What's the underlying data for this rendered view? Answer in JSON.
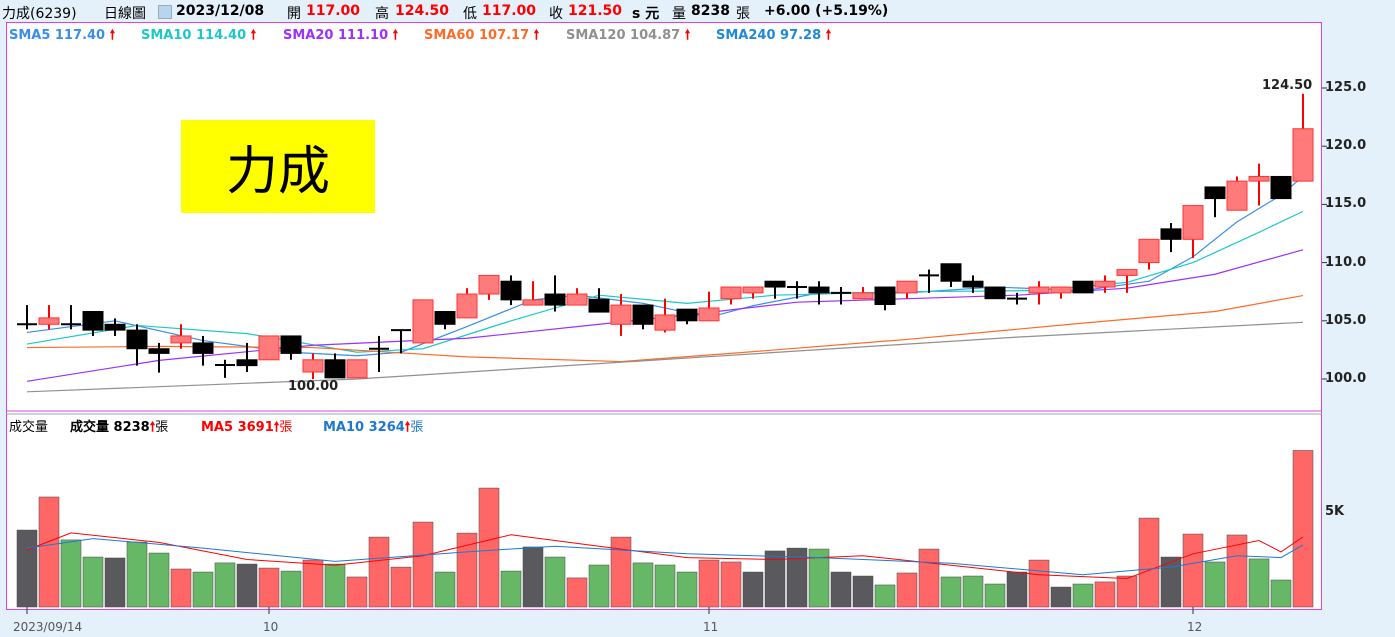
{
  "header": {
    "stock": "力成(6239)",
    "period": "日線圖",
    "date": "2023/12/08",
    "open_label": "開",
    "open": "117.00",
    "high_label": "高",
    "high": "124.50",
    "low_label": "低",
    "low": "117.00",
    "close_label": "收",
    "close": "121.50",
    "unit": "s 元",
    "vol_label": "量",
    "vol": "8238",
    "vol_unit": "張",
    "change": "+6.00 (+5.19%)"
  },
  "sma_legend": [
    {
      "label": "SMA5 117.40",
      "color": "#3a8ee6"
    },
    {
      "label": "SMA10 114.40",
      "color": "#1ec8c8"
    },
    {
      "label": "SMA20 111.10",
      "color": "#9b30ff"
    },
    {
      "label": "SMA60 107.17",
      "color": "#ff6a28"
    },
    {
      "label": "SMA120 104.87",
      "color": "#909090"
    },
    {
      "label": "SMA240 97.28",
      "color": "#1e8ad6"
    }
  ],
  "arrow": "🠕",
  "vol_legend": {
    "title": "成交量",
    "vol": "成交量 8238",
    "ma5": "MA5 3691",
    "ma10": "MA10 3264",
    "unit": "張"
  },
  "logo_text": "力成",
  "annotations": {
    "high": "124.50",
    "low": "100.00"
  },
  "chart_data": {
    "type": "candlestick",
    "price_axis": {
      "ticks": [
        "125.0",
        "120.0",
        "115.0",
        "110.0",
        "105.0",
        "100.0"
      ],
      "values": [
        125,
        120,
        115,
        110,
        105,
        100
      ]
    },
    "volume_axis": {
      "ticks": [
        "5K"
      ],
      "values": [
        5000
      ]
    },
    "x_labels": [
      {
        "idx": 0,
        "label": "2023/09/14"
      },
      {
        "idx": 11,
        "label": "10"
      },
      {
        "idx": 31,
        "label": "11"
      },
      {
        "idx": 53,
        "label": "12"
      }
    ],
    "ohlc": [
      [
        104.7,
        106.35,
        104.27,
        104.7
      ],
      [
        104.7,
        106.35,
        104.27,
        105.25
      ],
      [
        104.7,
        106.35,
        104.27,
        104.7
      ],
      [
        105.8,
        105.8,
        103.7,
        104.2
      ],
      [
        104.7,
        105.2,
        103.7,
        104.2
      ],
      [
        104.2,
        104.7,
        101.15,
        102.6
      ],
      [
        102.6,
        103.1,
        100.55,
        102.2
      ],
      [
        103.1,
        104.7,
        102.6,
        103.7
      ],
      [
        103.1,
        103.7,
        101.15,
        102.2
      ],
      [
        101.2,
        101.65,
        100.1,
        101.2
      ],
      [
        101.65,
        103.1,
        100.6,
        101.15
      ],
      [
        101.65,
        103.7,
        101.65,
        103.7
      ],
      [
        103.7,
        103.7,
        101.65,
        102.2
      ],
      [
        100.6,
        102.2,
        100.0,
        101.65
      ],
      [
        101.65,
        102.2,
        100.1,
        100.1
      ],
      [
        100.1,
        101.65,
        100.1,
        101.65
      ],
      [
        102.6,
        103.7,
        100.6,
        102.6
      ],
      [
        104.2,
        104.2,
        102.2,
        104.2
      ],
      [
        103.1,
        106.8,
        103.1,
        106.8
      ],
      [
        105.8,
        105.8,
        104.27,
        104.7
      ],
      [
        105.25,
        107.8,
        105.25,
        107.3
      ],
      [
        107.3,
        108.9,
        106.8,
        108.9
      ],
      [
        108.4,
        108.9,
        106.35,
        106.8
      ],
      [
        106.35,
        108.4,
        106.35,
        106.8
      ],
      [
        107.3,
        108.9,
        105.8,
        106.35
      ],
      [
        106.35,
        107.8,
        106.35,
        107.3
      ],
      [
        106.85,
        107.8,
        105.75,
        105.75
      ],
      [
        104.7,
        107.3,
        103.7,
        106.35
      ],
      [
        106.35,
        106.35,
        104.27,
        104.7
      ],
      [
        104.2,
        106.9,
        104.0,
        105.5
      ],
      [
        106.0,
        106.0,
        104.7,
        105.0
      ],
      [
        105.0,
        107.5,
        105.0,
        106.1
      ],
      [
        106.9,
        107.9,
        106.4,
        107.9
      ],
      [
        107.4,
        107.9,
        106.9,
        107.9
      ],
      [
        108.4,
        108.4,
        106.9,
        107.9
      ],
      [
        107.9,
        108.4,
        106.9,
        107.9
      ],
      [
        107.9,
        108.4,
        106.4,
        107.4
      ],
      [
        107.4,
        107.9,
        106.4,
        107.4
      ],
      [
        106.9,
        107.9,
        106.9,
        107.4
      ],
      [
        107.9,
        107.9,
        105.9,
        106.4
      ],
      [
        107.4,
        108.4,
        106.9,
        108.4
      ],
      [
        108.9,
        109.4,
        107.4,
        108.9
      ],
      [
        109.9,
        109.9,
        107.9,
        108.4
      ],
      [
        108.4,
        108.9,
        107.4,
        107.9
      ],
      [
        107.9,
        107.9,
        106.9,
        106.9
      ],
      [
        106.9,
        107.4,
        106.4,
        106.9
      ],
      [
        107.4,
        108.4,
        106.4,
        107.9
      ],
      [
        107.4,
        107.9,
        106.9,
        107.9
      ],
      [
        108.4,
        108.4,
        107.4,
        107.4
      ],
      [
        107.9,
        108.9,
        107.4,
        108.4
      ],
      [
        108.9,
        109.4,
        107.4,
        109.4
      ],
      [
        110.0,
        112.0,
        109.4,
        112.0
      ],
      [
        112.9,
        113.4,
        110.9,
        112.0
      ],
      [
        112.0,
        114.9,
        110.4,
        114.9
      ],
      [
        116.5,
        116.5,
        113.9,
        115.5
      ],
      [
        114.5,
        117.4,
        114.5,
        117.0
      ],
      [
        117.0,
        118.5,
        114.9,
        117.4
      ],
      [
        117.4,
        117.4,
        115.5,
        115.5
      ],
      [
        117.0,
        124.5,
        117.0,
        121.5
      ]
    ],
    "volume": [
      4050,
      5790,
      3530,
      2630,
      2580,
      3420,
      2840,
      2000,
      1840,
      2320,
      2260,
      2050,
      1890,
      2470,
      2260,
      1580,
      3680,
      2100,
      4470,
      1840,
      3890,
      6260,
      1890,
      3160,
      2630,
      1530,
      2210,
      3680,
      2320,
      2210,
      1840,
      2470,
      2370,
      1840,
      2950,
      3100,
      3050,
      1840,
      1630,
      1160,
      1790,
      3050,
      1580,
      1630,
      1210,
      1840,
      2470,
      1050,
      1210,
      1320,
      1630,
      4680,
      2630,
      3840,
      2370,
      3790,
      2530,
      1420,
      8238
    ],
    "volume_colors": "kr gg kg g r g g k r g r g r r r r g r r g k g r g r g g g r r k k k g k k g r r g g g k r k g r r r k r g r g g r",
    "ma_lines": [
      {
        "name": "SMA5",
        "color": "#3a8ee6",
        "pts": [
          [
            0,
            104.0
          ],
          [
            4,
            105.0
          ],
          [
            8,
            103.3
          ],
          [
            12,
            102.3
          ],
          [
            15,
            102.0
          ],
          [
            17,
            102.3
          ],
          [
            20,
            104.5
          ],
          [
            23,
            106.8
          ],
          [
            25,
            107.2
          ],
          [
            28,
            106.5
          ],
          [
            31,
            105.3
          ],
          [
            33,
            106.3
          ],
          [
            36,
            107.4
          ],
          [
            40,
            107.4
          ],
          [
            44,
            107.9
          ],
          [
            48,
            107.6
          ],
          [
            51,
            108.4
          ],
          [
            53,
            110.5
          ],
          [
            55,
            113.5
          ],
          [
            57,
            115.8
          ],
          [
            58,
            117.4
          ]
        ]
      },
      {
        "name": "SMA10",
        "color": "#1ec8c8",
        "pts": [
          [
            0,
            103.0
          ],
          [
            5,
            104.6
          ],
          [
            10,
            103.9
          ],
          [
            15,
            102.3
          ],
          [
            18,
            102.6
          ],
          [
            22,
            105.0
          ],
          [
            26,
            107.2
          ],
          [
            30,
            106.5
          ],
          [
            34,
            107.2
          ],
          [
            40,
            107.5
          ],
          [
            46,
            107.6
          ],
          [
            50,
            108.3
          ],
          [
            53,
            110.0
          ],
          [
            56,
            112.6
          ],
          [
            58,
            114.4
          ]
        ]
      },
      {
        "name": "SMA20",
        "color": "#9b30ff",
        "pts": [
          [
            0,
            99.8
          ],
          [
            6,
            101.6
          ],
          [
            13,
            102.9
          ],
          [
            20,
            103.5
          ],
          [
            25,
            104.5
          ],
          [
            30,
            105.5
          ],
          [
            35,
            106.6
          ],
          [
            40,
            106.9
          ],
          [
            45,
            107.2
          ],
          [
            50,
            107.8
          ],
          [
            54,
            109.0
          ],
          [
            58,
            111.1
          ]
        ]
      },
      {
        "name": "SMA60",
        "color": "#ff6a28",
        "pts": [
          [
            0,
            102.7
          ],
          [
            6,
            102.8
          ],
          [
            13,
            102.7
          ],
          [
            20,
            101.9
          ],
          [
            27,
            101.5
          ],
          [
            32,
            102.2
          ],
          [
            40,
            103.4
          ],
          [
            48,
            104.8
          ],
          [
            54,
            105.8
          ],
          [
            58,
            107.17
          ]
        ]
      },
      {
        "name": "SMA120",
        "color": "#909090",
        "pts": [
          [
            0,
            98.9
          ],
          [
            15,
            100.0
          ],
          [
            30,
            101.8
          ],
          [
            45,
            103.6
          ],
          [
            58,
            104.87
          ]
        ]
      }
    ],
    "vol_ma": [
      {
        "name": "MA5",
        "color": "#f00",
        "pts": [
          [
            0,
            3000
          ],
          [
            2,
            3900
          ],
          [
            6,
            3400
          ],
          [
            10,
            2500
          ],
          [
            14,
            2200
          ],
          [
            18,
            2700
          ],
          [
            22,
            3800
          ],
          [
            26,
            3200
          ],
          [
            30,
            2600
          ],
          [
            34,
            2500
          ],
          [
            38,
            2700
          ],
          [
            42,
            2200
          ],
          [
            46,
            1700
          ],
          [
            50,
            1500
          ],
          [
            53,
            2800
          ],
          [
            56,
            3500
          ],
          [
            57,
            2900
          ],
          [
            58,
            3691
          ]
        ]
      },
      {
        "name": "MA10",
        "color": "#1e78d0",
        "pts": [
          [
            0,
            3100
          ],
          [
            3,
            3600
          ],
          [
            8,
            3100
          ],
          [
            14,
            2400
          ],
          [
            20,
            2900
          ],
          [
            24,
            3200
          ],
          [
            30,
            2800
          ],
          [
            36,
            2600
          ],
          [
            42,
            2300
          ],
          [
            48,
            1700
          ],
          [
            52,
            2100
          ],
          [
            55,
            2700
          ],
          [
            57,
            2600
          ],
          [
            58,
            3264
          ]
        ]
      }
    ]
  }
}
